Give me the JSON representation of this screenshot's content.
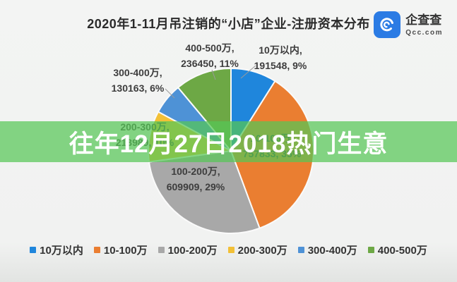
{
  "page": {
    "background": "#f1f2f1"
  },
  "header": {
    "title": "2020年1-11月吊注销的“小店”企业-注册资本分布",
    "logo": {
      "brand": "企查查",
      "domain": "Qcc.com",
      "icon": "qcc-magnifier-icon",
      "icon_color": "#2b7be4"
    }
  },
  "overlay_banner": {
    "text": "往年12月27日2018热门生意",
    "color": "#56C656",
    "text_color": "#ffffff"
  },
  "chart_data": {
    "type": "pie",
    "title": "2020年1-11月吊注销的“小店”企业-注册资本分布",
    "direction": "clockwise",
    "start_angle_deg": 0,
    "legend_position": "bottom",
    "label_format": "category, value, percent",
    "categories": [
      "10万以内",
      "10-100万",
      "100-200万",
      "200-300万",
      "300-400万",
      "400-500万"
    ],
    "values": [
      191548,
      757833,
      609909,
      213989,
      130163,
      236450
    ],
    "percent_labels": [
      "9%",
      "35%",
      "29%",
      "10%",
      "6%",
      "11%"
    ],
    "colors": [
      "#1f86dc",
      "#ea7e31",
      "#a8a8a8",
      "#f2c037",
      "#4e92d6",
      "#6da845"
    ],
    "slices": [
      {
        "label": "10万以内",
        "value": 191548,
        "percent": "9%",
        "color": "#1f86dc"
      },
      {
        "label": "10-100万",
        "value": 757833,
        "percent": "35%",
        "color": "#ea7e31"
      },
      {
        "label": "100-200万",
        "value": 609909,
        "percent": "29%",
        "color": "#a8a8a8"
      },
      {
        "label": "200-300万",
        "value": 213989,
        "percent": "10%",
        "color": "#f2c037"
      },
      {
        "label": "300-400万",
        "value": 130163,
        "percent": "6%",
        "color": "#4e92d6"
      },
      {
        "label": "400-500万",
        "value": 236450,
        "percent": "11%",
        "color": "#6da845"
      }
    ]
  }
}
